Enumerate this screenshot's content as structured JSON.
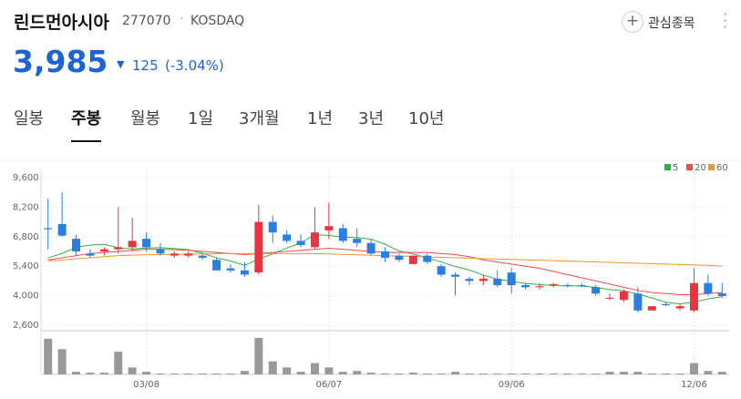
{
  "header": {
    "name": "린드먼아시아",
    "code": "277070",
    "market": "KOSDAQ",
    "watch_button": "관심종목",
    "price": "3,985",
    "change": "125",
    "change_pct": "(-3.04%)"
  },
  "tabs": {
    "items": [
      "일봉",
      "주봉",
      "월봉",
      "1일",
      "3개월",
      "1년",
      "3년",
      "10년"
    ],
    "selected": 1
  },
  "chart_data": {
    "type": "candlestick",
    "ylim": [
      2600,
      9600
    ],
    "yticks": [
      {
        "value": 2600,
        "label": "2,600"
      },
      {
        "value": 4000,
        "label": "4,000"
      },
      {
        "value": 5400,
        "label": "5,400"
      },
      {
        "value": 6800,
        "label": "6,800"
      },
      {
        "value": 8200,
        "label": "8,200"
      },
      {
        "value": 9600,
        "label": "9,600"
      }
    ],
    "xlim": [
      -0.5,
      48.5
    ],
    "xticks": [
      {
        "value": 7,
        "label": "03/08"
      },
      {
        "value": 20,
        "label": "06/07"
      },
      {
        "value": 33,
        "label": "09/06"
      },
      {
        "value": 46,
        "label": "12/06"
      }
    ],
    "up_color": "#e8343f",
    "down_color": "#2a7fe0",
    "open": [
      7200,
      7400,
      6700,
      6000,
      6100,
      6200,
      6300,
      6700,
      6200,
      5900,
      5900,
      5900,
      5700,
      5300,
      5200,
      5100,
      7500,
      6900,
      6600,
      6300,
      7100,
      7200,
      6700,
      6500,
      6100,
      5900,
      5500,
      5900,
      5400,
      5000,
      4800,
      4700,
      4800,
      5100,
      4500,
      4400,
      4500,
      4500,
      4500,
      4400,
      3900,
      3800,
      4100,
      3300,
      3600,
      3400,
      3300,
      4600,
      4110
    ],
    "high": [
      8600,
      8900,
      6900,
      6200,
      6300,
      8200,
      7700,
      7000,
      6500,
      6100,
      6100,
      6000,
      5800,
      5500,
      5600,
      8300,
      7800,
      7100,
      6900,
      8200,
      8400,
      7400,
      7200,
      6700,
      6300,
      6000,
      5900,
      6000,
      5500,
      5100,
      4900,
      5000,
      5200,
      5300,
      4600,
      4600,
      4600,
      4600,
      4600,
      4500,
      4100,
      4300,
      4400,
      3500,
      3700,
      3600,
      5300,
      5000,
      4600
    ],
    "low": [
      6200,
      6800,
      5900,
      5800,
      5900,
      6000,
      6100,
      6100,
      5900,
      5800,
      5800,
      5700,
      5200,
      5100,
      4900,
      5000,
      6500,
      6500,
      6300,
      6200,
      6700,
      6500,
      6300,
      5900,
      5600,
      5600,
      5500,
      5500,
      4900,
      4000,
      4500,
      4500,
      4400,
      4100,
      4300,
      4300,
      4400,
      4400,
      4400,
      4000,
      3800,
      3700,
      3200,
      3300,
      3500,
      3300,
      3200,
      4000,
      3900
    ],
    "close": [
      7150,
      6850,
      6100,
      5900,
      6200,
      6300,
      6600,
      6300,
      6000,
      6000,
      6000,
      5800,
      5200,
      5200,
      5000,
      7500,
      7000,
      6600,
      6400,
      7000,
      7300,
      6600,
      6500,
      6000,
      5800,
      5700,
      5900,
      5600,
      5000,
      4900,
      4700,
      4800,
      4500,
      4500,
      4400,
      4450,
      4550,
      4450,
      4450,
      4100,
      3900,
      4200,
      3300,
      3500,
      3550,
      3500,
      4600,
      4100,
      3985
    ],
    "series": [
      {
        "name": "5",
        "color": "#2fb33f",
        "values": [
          5800,
          6000,
          6300,
          6400,
          6440,
          6270,
          6220,
          6260,
          6280,
          6240,
          6180,
          6020,
          5800,
          5640,
          5440,
          5740,
          5980,
          6260,
          6500,
          6900,
          6860,
          6780,
          6760,
          6680,
          6440,
          6120,
          5980,
          5800,
          5600,
          5380,
          5220,
          4980,
          4780,
          4680,
          4580,
          4530,
          4480,
          4470,
          4460,
          4400,
          4290,
          4230,
          4080,
          3890,
          3690,
          3610,
          3690,
          3850,
          3950
        ]
      },
      {
        "name": "20",
        "color": "#ee4b4b",
        "values": [
          5700,
          5800,
          5900,
          6000,
          6050,
          6100,
          6150,
          6200,
          6200,
          6180,
          6150,
          6100,
          6050,
          6000,
          5950,
          6000,
          6050,
          6100,
          6150,
          6200,
          6250,
          6200,
          6150,
          6100,
          6050,
          6050,
          6050,
          6050,
          6000,
          5950,
          5850,
          5700,
          5600,
          5500,
          5400,
          5300,
          5150,
          5000,
          4850,
          4700,
          4550,
          4400,
          4250,
          4150,
          4100,
          4050,
          4050,
          4100,
          4150
        ]
      },
      {
        "name": "60",
        "color": "#f0962e",
        "values": [
          5650,
          5700,
          5750,
          5800,
          5850,
          5900,
          5920,
          5940,
          5950,
          5960,
          5970,
          5980,
          5990,
          6000,
          6000,
          6000,
          6000,
          6000,
          6000,
          6000,
          5980,
          5960,
          5940,
          5920,
          5900,
          5880,
          5860,
          5840,
          5820,
          5800,
          5780,
          5760,
          5740,
          5720,
          5700,
          5680,
          5660,
          5640,
          5620,
          5600,
          5580,
          5560,
          5540,
          5520,
          5500,
          5480,
          5460,
          5440,
          5400
        ]
      }
    ],
    "volume_color": "#999999",
    "volume_ylim": [
      0,
      45
    ],
    "volume": [
      41,
      29,
      3,
      2,
      2,
      26,
      8,
      3,
      1,
      1,
      1,
      1,
      1,
      1,
      4,
      42,
      15,
      8,
      3,
      13,
      8,
      3,
      4,
      2,
      1,
      1,
      2,
      1,
      1,
      3,
      1,
      1,
      1,
      1,
      1,
      1,
      1,
      1,
      1,
      1,
      3,
      3,
      3,
      1,
      1,
      1,
      13,
      4,
      3
    ]
  }
}
